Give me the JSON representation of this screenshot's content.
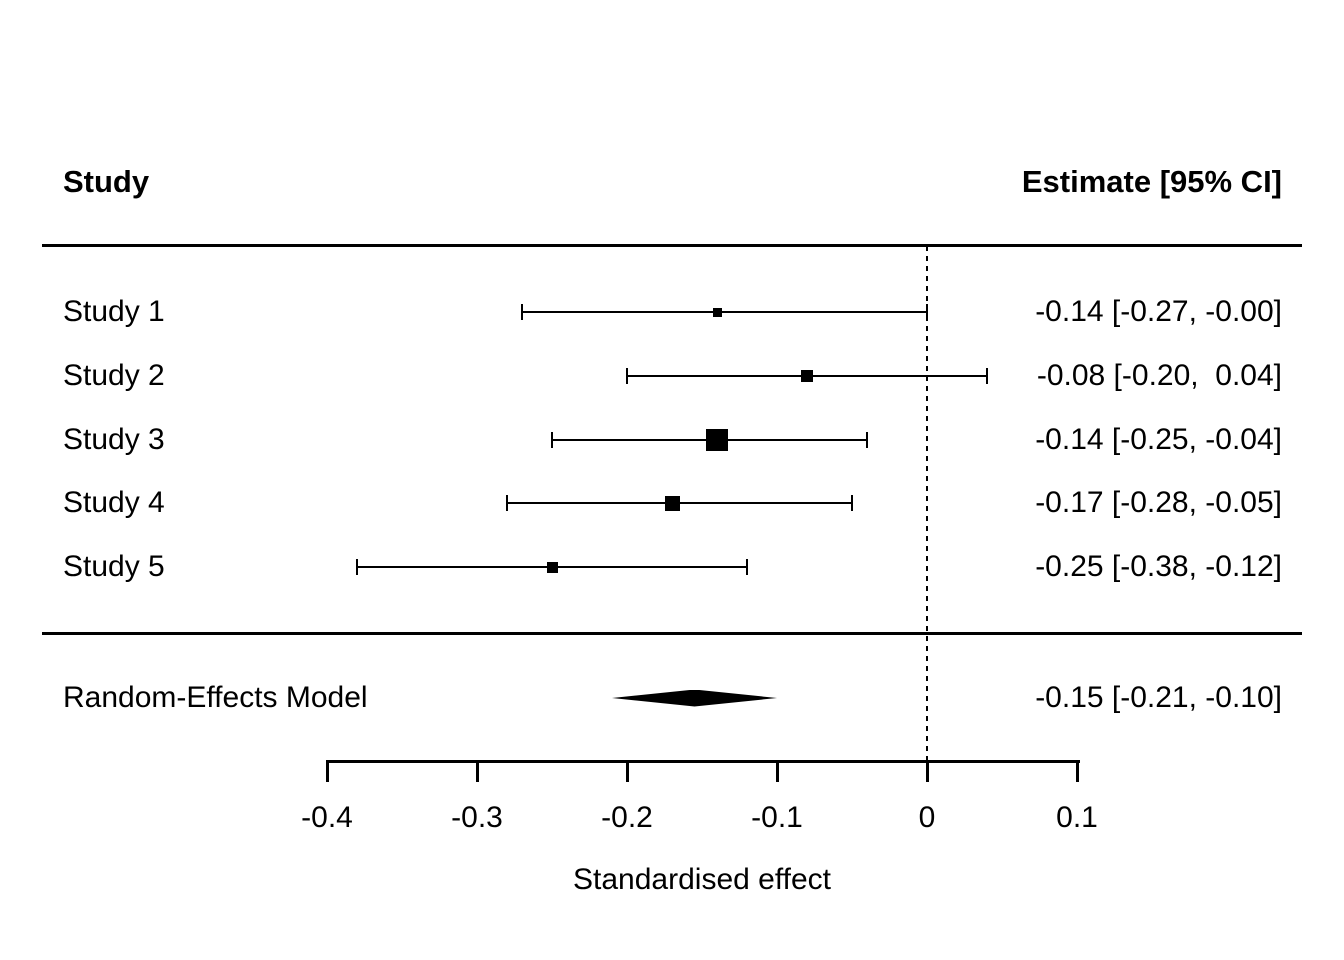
{
  "header": {
    "study_col": "Study",
    "estimate_col": "Estimate [95% CI]"
  },
  "chart_data": {
    "type": "forest",
    "xlabel": "Standardised effect",
    "xlim": [
      -0.4,
      0.1
    ],
    "x_ticks": [
      -0.4,
      -0.3,
      -0.2,
      -0.1,
      0,
      0.1
    ],
    "x_tick_labels": [
      "-0.4",
      "-0.3",
      "-0.2",
      "-0.1",
      "0",
      "0.1"
    ],
    "reference_line_x": 0,
    "grid": false,
    "colors": {
      "foreground": "#000000",
      "background": "#ffffff"
    },
    "studies": [
      {
        "label": "Study 1",
        "estimate": -0.14,
        "ci_low": -0.27,
        "ci_high": -0.0,
        "estimate_label": "-0.14 [-0.27, -0.00]",
        "marker_size": 9
      },
      {
        "label": "Study 2",
        "estimate": -0.08,
        "ci_low": -0.2,
        "ci_high": 0.04,
        "estimate_label": "-0.08 [-0.20,  0.04]",
        "marker_size": 12
      },
      {
        "label": "Study 3",
        "estimate": -0.14,
        "ci_low": -0.25,
        "ci_high": -0.04,
        "estimate_label": "-0.14 [-0.25, -0.04]",
        "marker_size": 22
      },
      {
        "label": "Study 4",
        "estimate": -0.17,
        "ci_low": -0.28,
        "ci_high": -0.05,
        "estimate_label": "-0.17 [-0.28, -0.05]",
        "marker_size": 15
      },
      {
        "label": "Study 5",
        "estimate": -0.25,
        "ci_low": -0.38,
        "ci_high": -0.12,
        "estimate_label": "-0.25 [-0.38, -0.12]",
        "marker_size": 11
      }
    ],
    "summary": {
      "label": "Random-Effects Model",
      "estimate": -0.15,
      "ci_low": -0.21,
      "ci_high": -0.1,
      "estimate_label": "-0.15 [-0.21, -0.10]"
    }
  }
}
